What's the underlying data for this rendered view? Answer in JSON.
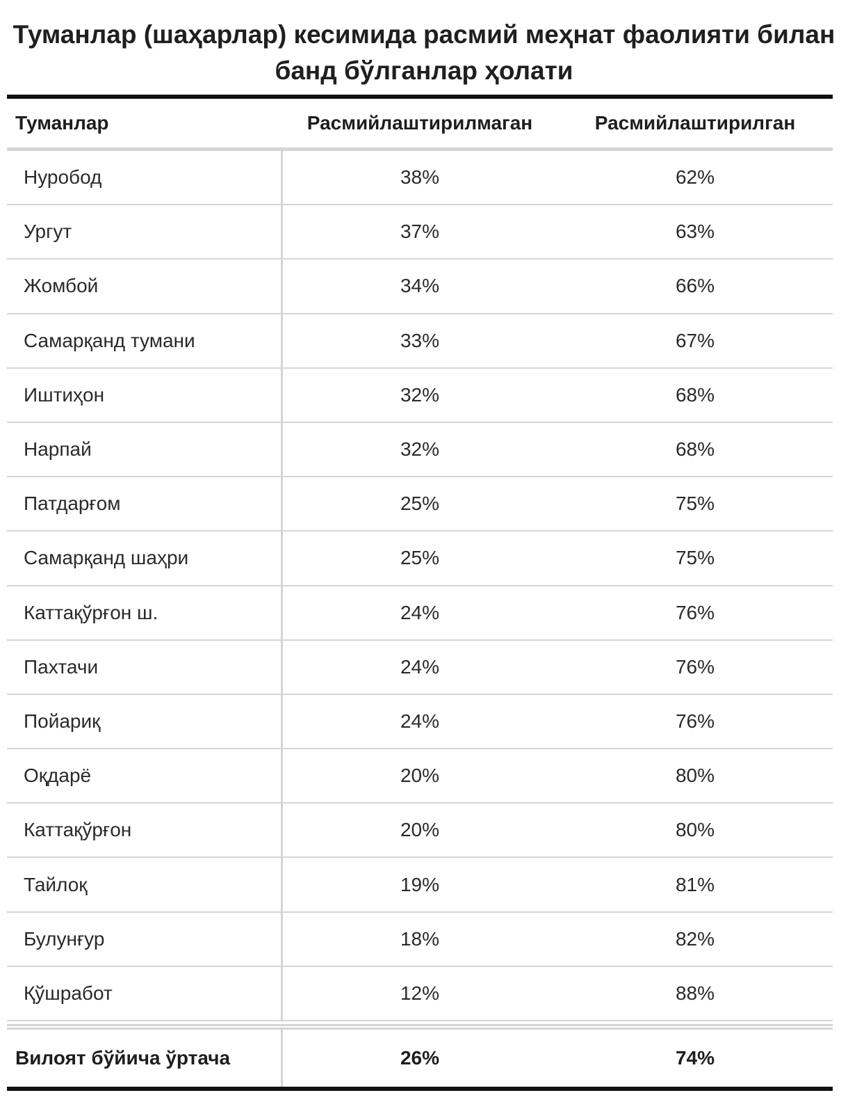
{
  "chart_data": {
    "type": "table",
    "title": "Туманлар (шаҳарлар) кесимида расмий меҳнат фаолияти билан банд бўлганлар ҳолати",
    "columns": [
      "Туманлар",
      "Расмийлаштирилмаган",
      "Расмийлаштирилган"
    ],
    "rows": [
      {
        "district": "Нуробод",
        "unregistered": "38%",
        "registered": "62%"
      },
      {
        "district": "Ургут",
        "unregistered": "37%",
        "registered": "63%"
      },
      {
        "district": "Жомбой",
        "unregistered": "34%",
        "registered": "66%"
      },
      {
        "district": "Самарқанд тумани",
        "unregistered": "33%",
        "registered": "67%"
      },
      {
        "district": "Иштиҳон",
        "unregistered": "32%",
        "registered": "68%"
      },
      {
        "district": "Нарпай",
        "unregistered": "32%",
        "registered": "68%"
      },
      {
        "district": "Патдарғом",
        "unregistered": "25%",
        "registered": "75%"
      },
      {
        "district": "Самарқанд шаҳри",
        "unregistered": "25%",
        "registered": "75%"
      },
      {
        "district": "Каттақўрғон ш.",
        "unregistered": "24%",
        "registered": "76%"
      },
      {
        "district": "Пахтачи",
        "unregistered": "24%",
        "registered": "76%"
      },
      {
        "district": "Пойариқ",
        "unregistered": "24%",
        "registered": "76%"
      },
      {
        "district": "Оқдарё",
        "unregistered": "20%",
        "registered": "80%"
      },
      {
        "district": "Каттақўрғон",
        "unregistered": "20%",
        "registered": "80%"
      },
      {
        "district": "Тайлоқ",
        "unregistered": "19%",
        "registered": "81%"
      },
      {
        "district": "Булунғур",
        "unregistered": "18%",
        "registered": "82%"
      },
      {
        "district": "Қўшработ",
        "unregistered": "12%",
        "registered": "88%"
      }
    ],
    "total": {
      "district": "Вилоят бўйича ўртача",
      "unregistered": "26%",
      "registered": "74%"
    }
  }
}
